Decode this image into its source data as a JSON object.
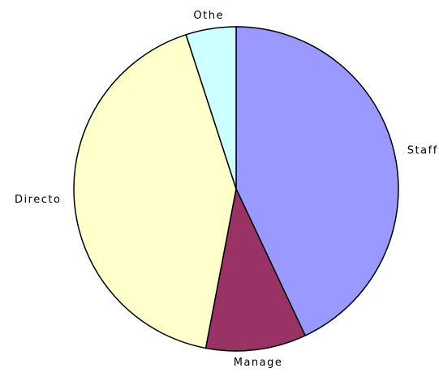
{
  "chart_data": {
    "type": "pie",
    "categories": [
      "Staff",
      "Manage",
      "Directo",
      "Othe"
    ],
    "values": [
      43,
      10,
      42,
      5
    ],
    "colors": [
      "#9999ff",
      "#993366",
      "#ffffcc",
      "#ccffff"
    ]
  }
}
